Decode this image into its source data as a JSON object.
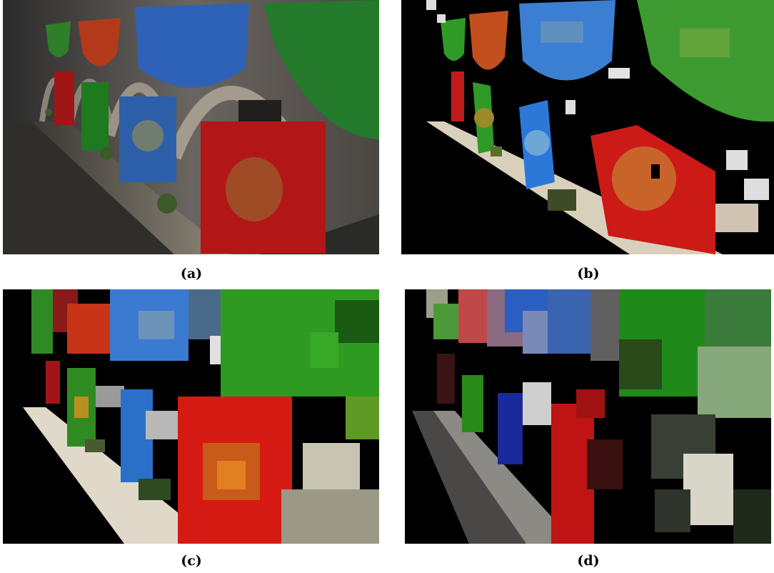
{
  "figure": {
    "panels": [
      {
        "id": "a",
        "caption": "(a)"
      },
      {
        "id": "b",
        "caption": "(b)"
      },
      {
        "id": "c",
        "caption": "(c)"
      },
      {
        "id": "d",
        "caption": "(d)"
      }
    ]
  }
}
